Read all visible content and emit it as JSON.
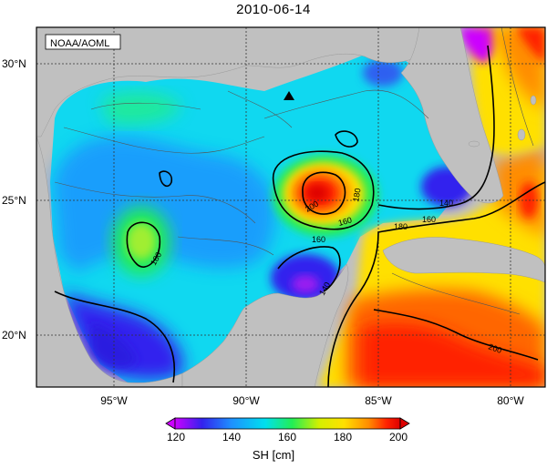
{
  "map": {
    "title": "2010-06-14",
    "credit": "NOAA/AOML",
    "lat_labels": [
      "30°N",
      "25°N",
      "20°N"
    ],
    "lon_labels": [
      "95°W",
      "90°W",
      "85°W",
      "80°W"
    ],
    "contour_labels": [
      "180",
      "160",
      "180",
      "200",
      "180",
      "160",
      "140",
      "160",
      "140",
      "200"
    ],
    "colorbar": {
      "title": "SH [cm]",
      "ticks": [
        "120",
        "140",
        "160",
        "180",
        "200"
      ],
      "colors": [
        "#cc00ff",
        "#3322ee",
        "#1e90ff",
        "#00e0ee",
        "#22ee55",
        "#d4f000",
        "#ffe000",
        "#ff8c00",
        "#ff2200",
        "#dd0000"
      ]
    },
    "land_color": "#c0c0c0",
    "marker": "triangle"
  }
}
